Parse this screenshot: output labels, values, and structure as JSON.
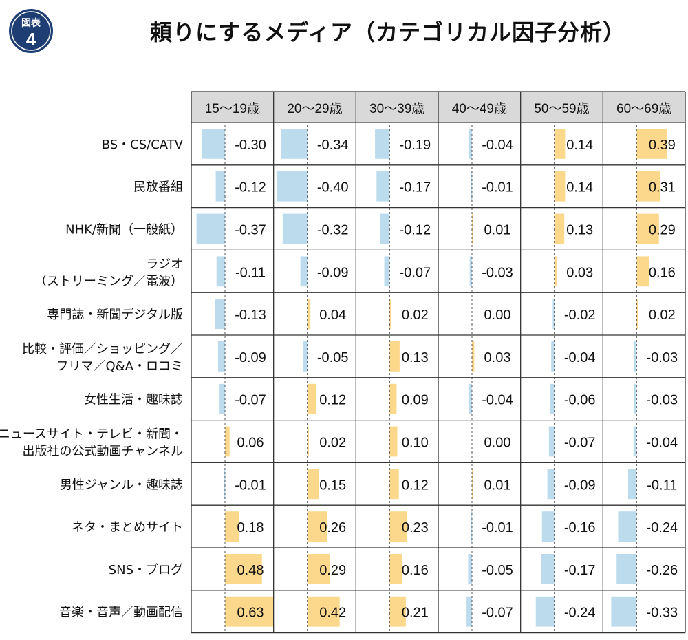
{
  "badge": {
    "label": "図表",
    "number": "4"
  },
  "title": "頼りにするメディア（カテゴリカル因子分析）",
  "colors": {
    "positive": "#fbd88c",
    "negative": "#bcdcee",
    "badge_bg": "#1d3d73",
    "grid": "#333333"
  },
  "chart_data": {
    "type": "table",
    "title": "頼りにするメディア（カテゴリカル因子分析）",
    "columns": [
      "15～19歳",
      "20～29歳",
      "30～39歳",
      "40～49歳",
      "50～59歳",
      "60～69歳"
    ],
    "rows": [
      {
        "label": [
          "BS・CS/CATV"
        ],
        "values": [
          -0.3,
          -0.34,
          -0.19,
          -0.04,
          0.14,
          0.39
        ]
      },
      {
        "label": [
          "民放番組"
        ],
        "values": [
          -0.12,
          -0.4,
          -0.17,
          -0.01,
          0.14,
          0.31
        ]
      },
      {
        "label": [
          "NHK/新聞（一般紙）"
        ],
        "values": [
          -0.37,
          -0.32,
          -0.12,
          0.01,
          0.13,
          0.29
        ]
      },
      {
        "label": [
          "ラジオ",
          "（ストリーミング／電波）"
        ],
        "values": [
          -0.11,
          -0.09,
          -0.07,
          -0.03,
          0.03,
          0.16
        ]
      },
      {
        "label": [
          "専門誌・新聞デジタル版"
        ],
        "values": [
          -0.13,
          0.04,
          0.02,
          0.0,
          -0.02,
          0.02
        ]
      },
      {
        "label": [
          "比較・評価／ショッピング／",
          "フリマ／Q&A・ロコミ"
        ],
        "values": [
          -0.09,
          -0.05,
          0.13,
          0.03,
          -0.04,
          -0.03
        ]
      },
      {
        "label": [
          "女性生活・趣味誌"
        ],
        "values": [
          -0.07,
          0.12,
          0.09,
          -0.04,
          -0.06,
          -0.03
        ]
      },
      {
        "label": [
          "ニュースサイト・テレビ・新聞・",
          "出版社の公式動画チャンネル"
        ],
        "values": [
          0.06,
          0.02,
          0.1,
          0.0,
          -0.07,
          -0.04
        ]
      },
      {
        "label": [
          "男性ジャンル・趣味誌"
        ],
        "values": [
          -0.01,
          0.15,
          0.12,
          0.01,
          -0.09,
          -0.11
        ]
      },
      {
        "label": [
          "ネタ・まとめサイト"
        ],
        "values": [
          0.18,
          0.26,
          0.23,
          -0.01,
          -0.16,
          -0.24
        ]
      },
      {
        "label": [
          "SNS・ブログ"
        ],
        "values": [
          0.48,
          0.29,
          0.16,
          -0.05,
          -0.17,
          -0.26
        ]
      },
      {
        "label": [
          "音楽・音声／動画配信"
        ],
        "values": [
          0.63,
          0.42,
          0.21,
          -0.07,
          -0.24,
          -0.33
        ]
      }
    ]
  }
}
